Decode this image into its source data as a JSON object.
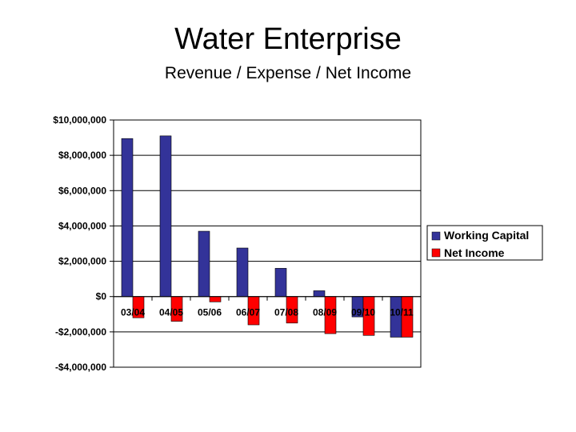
{
  "chart_data": {
    "type": "bar",
    "title": "Water Enterprise",
    "subtitle": "Revenue / Expense / Net Income",
    "xlabel": "",
    "ylabel": "",
    "categories": [
      "03/04",
      "04/05",
      "05/06",
      "06/07",
      "07/08",
      "08/09",
      "09/10",
      "10/11"
    ],
    "series": [
      {
        "name": "Working Capital",
        "color": "#333399",
        "values": [
          8950000,
          9100000,
          3700000,
          2750000,
          1600000,
          330000,
          -1150000,
          -2300000
        ]
      },
      {
        "name": "Net Income",
        "color": "#ff0000",
        "values": [
          -1200000,
          -1400000,
          -300000,
          -1600000,
          -1500000,
          -2100000,
          -2200000,
          -2300000
        ]
      }
    ],
    "ylim": [
      -4000000,
      10000000
    ],
    "yticks": [
      10000000,
      8000000,
      6000000,
      4000000,
      2000000,
      0,
      -2000000,
      -4000000
    ],
    "ytick_labels": [
      "$10,000,000",
      "$8,000,000",
      "$6,000,000",
      "$4,000,000",
      "$2,000,000",
      "$0",
      "-$2,000,000",
      "-$4,000,000"
    ],
    "grid": true,
    "legend_position": "right"
  }
}
